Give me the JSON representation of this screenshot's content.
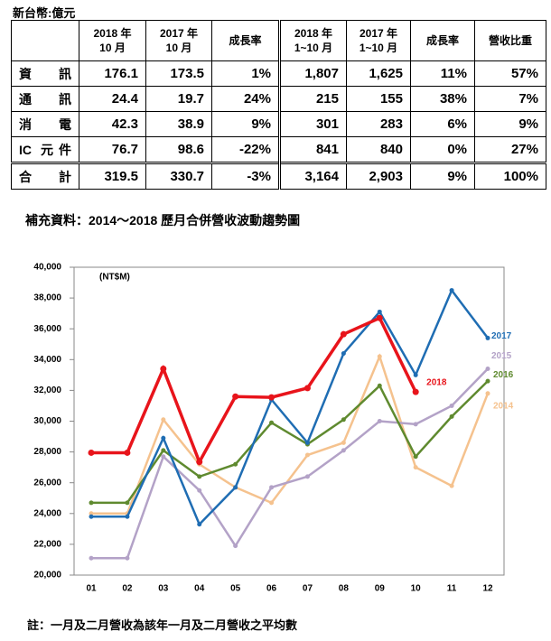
{
  "unit": "新台幣:億元",
  "table": {
    "header": [
      [
        "2018 年",
        "10 月"
      ],
      [
        "2017 年",
        "10 月"
      ],
      [
        "成長率"
      ],
      [
        "2018 年",
        "1~10 月"
      ],
      [
        "2017 年",
        "1~10 月"
      ],
      [
        "成長率"
      ],
      [
        "營收比重"
      ]
    ],
    "rows": [
      [
        "資訊",
        "176.1",
        "173.5",
        "1%",
        "1,807",
        "1,625",
        "11%",
        "57%"
      ],
      [
        "通訊",
        "24.4",
        "19.7",
        "24%",
        "215",
        "155",
        "38%",
        "7%"
      ],
      [
        "消電",
        "42.3",
        "38.9",
        "9%",
        "301",
        "283",
        "6%",
        "9%"
      ],
      [
        "IC 元件",
        "76.7",
        "98.6",
        "-22%",
        "841",
        "840",
        "0%",
        "27%"
      ],
      [
        "合計",
        "319.5",
        "330.7",
        "-3%",
        "3,164",
        "2,903",
        "9%",
        "100%"
      ]
    ]
  },
  "subtitle": "補充資料：2014～2018 歷月合併營收波動趨勢圖",
  "chart_data": {
    "type": "line",
    "y_label": "(NT$M)",
    "categories": [
      "01",
      "02",
      "03",
      "04",
      "05",
      "06",
      "07",
      "08",
      "09",
      "10",
      "11",
      "12"
    ],
    "ylim": [
      20000,
      40000
    ],
    "yticks": [
      {
        "value": 20000,
        "label": "20,000"
      },
      {
        "value": 22000,
        "label": "22,000"
      },
      {
        "value": 24000,
        "label": "24,000"
      },
      {
        "value": 26000,
        "label": "26,000"
      },
      {
        "value": 28000,
        "label": "28,000"
      },
      {
        "value": 30000,
        "label": "30,000"
      },
      {
        "value": 32000,
        "label": "32,000"
      },
      {
        "value": 34000,
        "label": "34,000"
      },
      {
        "value": 36000,
        "label": "36,000"
      },
      {
        "value": 38000,
        "label": "38,000"
      },
      {
        "value": 40000,
        "label": "40,000"
      }
    ],
    "grid": false,
    "series": [
      {
        "name": "2014",
        "color": "#f5c28e",
        "values": [
          24000,
          24000,
          30100,
          27200,
          25700,
          24700,
          27800,
          28600,
          34200,
          27000,
          25800,
          31800
        ]
      },
      {
        "name": "2015",
        "color": "#b3a2c7",
        "values": [
          21100,
          21100,
          27700,
          25500,
          21900,
          25700,
          26400,
          28100,
          30000,
          29800,
          31000,
          33400
        ]
      },
      {
        "name": "2016",
        "color": "#5f8a2f",
        "values": [
          24700,
          24700,
          28100,
          26400,
          27200,
          29900,
          28500,
          30100,
          32300,
          27700,
          30300,
          32600
        ]
      },
      {
        "name": "2017",
        "color": "#1f6db3",
        "values": [
          23800,
          23800,
          28900,
          23300,
          25700,
          31400,
          28600,
          34400,
          37100,
          33000,
          38500,
          35400
        ]
      },
      {
        "name": "2018",
        "color": "#e8141b",
        "values": [
          27950,
          27950,
          33400,
          27350,
          31600,
          31550,
          32150,
          35650,
          36700,
          31900,
          null,
          null
        ]
      }
    ]
  },
  "footnote": "註：一月及二月營收為該年一月及二月營收之平均數"
}
